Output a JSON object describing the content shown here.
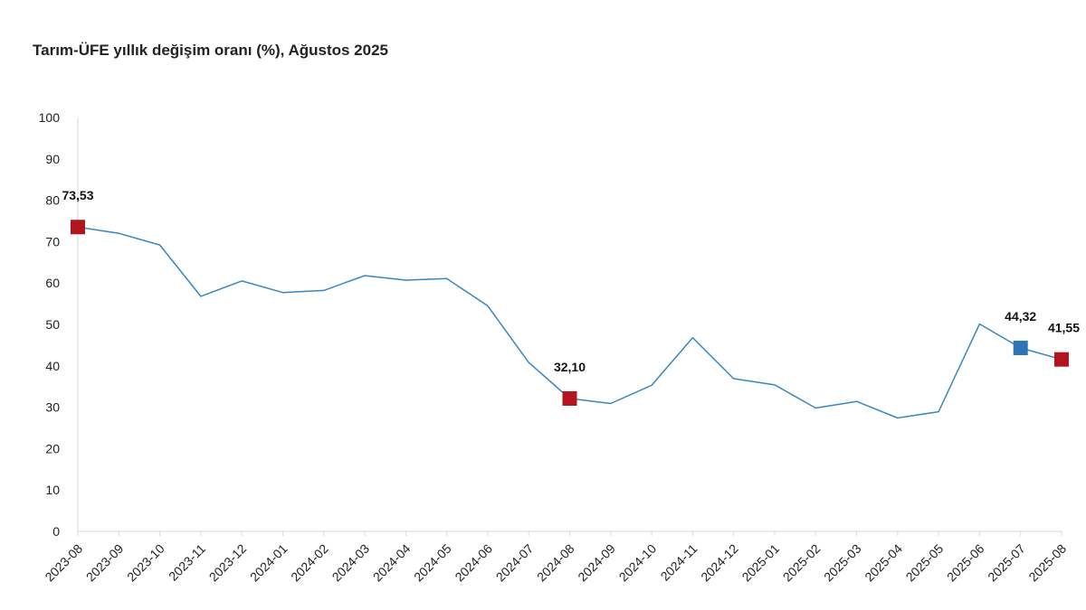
{
  "chart_data": {
    "type": "line",
    "title": "Tarım-ÜFE yıllık değişim oranı (%), Ağustos 2025",
    "xlabel": "",
    "ylabel": "",
    "ylim": [
      0,
      100
    ],
    "yticks": [
      0,
      10,
      20,
      30,
      40,
      50,
      60,
      70,
      80,
      90,
      100
    ],
    "categories": [
      "2023-08",
      "2023-09",
      "2023-10",
      "2023-11",
      "2023-12",
      "2024-01",
      "2024-02",
      "2024-03",
      "2024-04",
      "2024-05",
      "2024-06",
      "2024-07",
      "2024-08",
      "2024-09",
      "2024-10",
      "2024-11",
      "2024-12",
      "2025-01",
      "2025-02",
      "2025-03",
      "2025-04",
      "2025-05",
      "2025-06",
      "2025-07",
      "2025-08"
    ],
    "series": [
      {
        "name": "Tarım-ÜFE yıllık değişim oranı (%)",
        "color": "#3a86c0",
        "values": [
          73.53,
          72.0,
          69.2,
          56.8,
          60.5,
          57.7,
          58.2,
          61.8,
          60.7,
          61.1,
          54.5,
          40.8,
          32.1,
          30.9,
          35.3,
          46.8,
          36.9,
          35.4,
          29.8,
          31.4,
          27.4,
          28.9,
          50.1,
          44.32,
          41.55
        ]
      }
    ],
    "highlighted_points": [
      {
        "category": "2023-08",
        "value": 73.53,
        "label": "73,53",
        "color": "#b3151e"
      },
      {
        "category": "2024-08",
        "value": 32.1,
        "label": "32,10",
        "color": "#b3151e"
      },
      {
        "category": "2025-07",
        "value": 44.32,
        "label": "44,32",
        "color": "#2f75b5"
      },
      {
        "category": "2025-08",
        "value": 41.55,
        "label": "41,55",
        "color": "#b3151e"
      }
    ],
    "grid": false,
    "legend": "none"
  }
}
